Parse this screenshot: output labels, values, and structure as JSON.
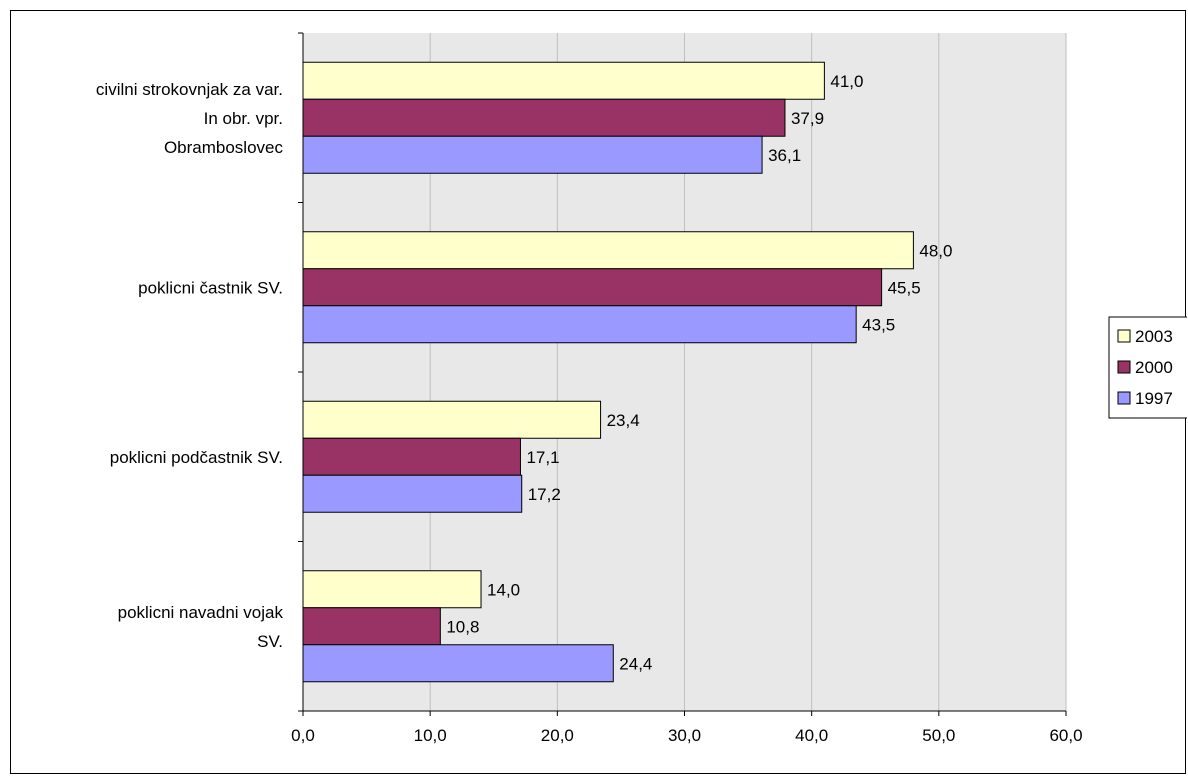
{
  "chart_data": {
    "type": "bar",
    "orientation": "horizontal",
    "title": "",
    "xlabel": "",
    "ylabel": "",
    "xlim": [
      0,
      60
    ],
    "x_ticks": [
      "0,0",
      "10,0",
      "20,0",
      "30,0",
      "40,0",
      "50,0",
      "60,0"
    ],
    "grid": true,
    "legend_position": "right",
    "categories": [
      [
        "civilni strokovnjak za var.",
        "In obr. vpr.",
        "Obramboslovec"
      ],
      [
        "poklicni častnik SV."
      ],
      [
        "poklicni podčastnik SV."
      ],
      [
        "poklicni navadni vojak",
        "SV."
      ]
    ],
    "series": [
      {
        "name": "2003",
        "color": "#FFFFCC",
        "values": [
          41.0,
          48.0,
          23.4,
          14.0
        ],
        "labels": [
          "41,0",
          "48,0",
          "23,4",
          "14,0"
        ]
      },
      {
        "name": "2000",
        "color": "#993366",
        "values": [
          37.9,
          45.5,
          17.1,
          10.8
        ],
        "labels": [
          "37,9",
          "45,5",
          "17,1",
          "10,8"
        ]
      },
      {
        "name": "1997",
        "color": "#9999FF",
        "values": [
          36.1,
          43.5,
          17.2,
          24.4
        ],
        "labels": [
          "36,1",
          "43,5",
          "17,2",
          "24,4"
        ]
      }
    ],
    "colors": {
      "plot_background": "#E8E8E8",
      "gridline": "#BFBFBF",
      "axis": "#000000"
    }
  }
}
